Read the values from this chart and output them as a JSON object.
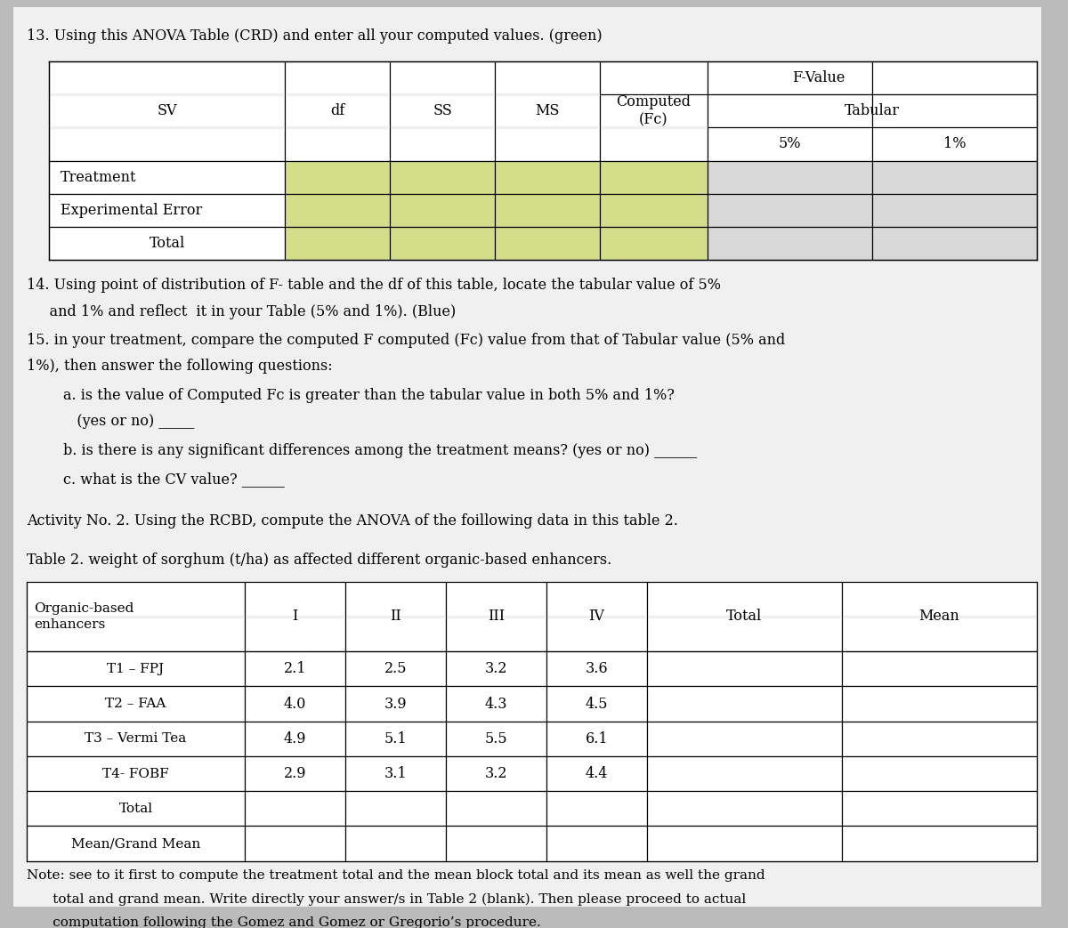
{
  "title13": "13. Using this ANOVA Table (CRD) and enter all your computed values. (green)",
  "table1_rows": [
    "Treatment",
    "Experimental Error",
    "Total"
  ],
  "yellow_green": "#d4de8a",
  "light_gray": "#d8d8d8",
  "white": "#ffffff",
  "page_bg": "#f0f0f0",
  "outer_bg": "#bbbbbb",
  "text14_line1": "14. Using point of distribution of F- table and the df of this table, locate the tabular value of 5%",
  "text14_line2": "     and 1% and reflect  it in your Table (5% and 1%). (Blue)",
  "text15_line1": "15. in your treatment, compare the computed F computed (Fc) value from that of Tabular value (5% and",
  "text15_line2": "1%), then answer the following questions:",
  "text15a_line1": "        a. is the value of Computed Fc is greater than the tabular value in both 5% and 1%?",
  "text15a_line2": "           (yes or no) _____",
  "text15b": "        b. is there is any significant differences among the treatment means? (yes or no) ______",
  "text15c": "        c. what is the CV value? ______",
  "activity_title": "Activity No. 2. Using the RCBD, compute the ANOVA of the foillowing data in this table 2.",
  "table2_title": "Table 2. weight of sorghum (t/ha) as affected different organic-based enhancers.",
  "table2_rows": [
    [
      "T1 – FPJ",
      "2.1",
      "2.5",
      "3.2",
      "3.6",
      "",
      ""
    ],
    [
      "T2 – FAA",
      "4.0",
      "3.9",
      "4.3",
      "4.5",
      "",
      ""
    ],
    [
      "T3 – Vermi Tea",
      "4.9",
      "5.1",
      "5.5",
      "6.1",
      "",
      ""
    ],
    [
      "T4- FOBF",
      "2.9",
      "3.1",
      "3.2",
      "4.4",
      "",
      ""
    ],
    [
      "Total",
      "",
      "",
      "",
      "",
      "",
      ""
    ],
    [
      "Mean/Grand Mean",
      "",
      "",
      "",
      "",
      "",
      ""
    ]
  ],
  "note_line1": "Note: see to it first to compute the treatment total and the mean block total and its mean as well the grand",
  "note_line2": "      total and grand mean. Write directly your answer/s in Table 2 (blank). Then please proceed to actual",
  "note_line3": "      computation following the Gomez and Gomez or Gregorio’s procedure."
}
